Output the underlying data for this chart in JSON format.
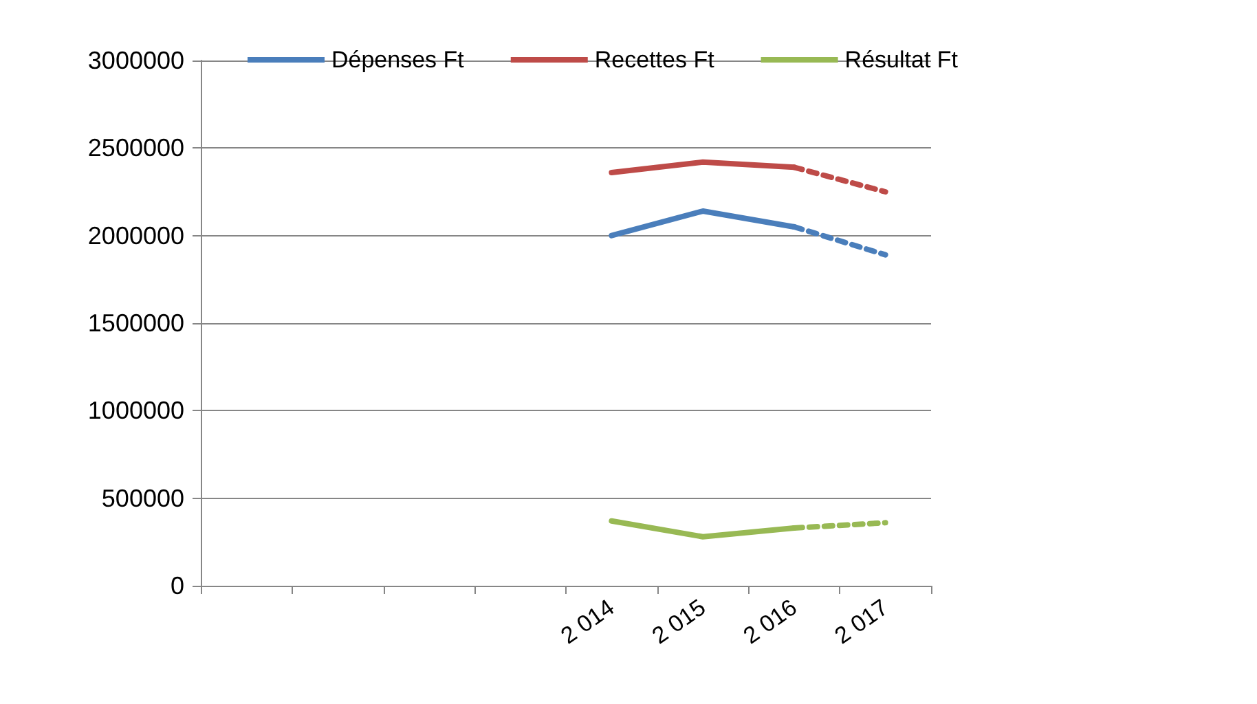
{
  "chart_data": {
    "type": "line",
    "categories": [
      null,
      null,
      null,
      null,
      "2 014",
      "2 015",
      "2 016",
      "2 017"
    ],
    "series": [
      {
        "name": "Dépenses Ft",
        "color": "#4a7ebb",
        "values": [
          null,
          null,
          null,
          null,
          2000000,
          2140000,
          2050000,
          null
        ]
      },
      {
        "name": "Recettes Ft",
        "color": "#be4b48",
        "values": [
          null,
          null,
          null,
          null,
          2360000,
          2420000,
          2390000,
          null
        ]
      },
      {
        "name": "Résultat Ft",
        "color": "#98b954",
        "values": [
          null,
          null,
          null,
          null,
          370000,
          280000,
          330000,
          null
        ]
      },
      {
        "color": "#4a7ebb",
        "line_style": "dashed",
        "values": [
          null,
          null,
          null,
          null,
          null,
          null,
          2050000,
          1890000
        ]
      },
      {
        "color": "#be4b48",
        "line_style": "dashed",
        "values": [
          null,
          null,
          null,
          null,
          null,
          null,
          2390000,
          2250000
        ]
      },
      {
        "color": "#98b954",
        "line_style": "dashed",
        "values": [
          null,
          null,
          null,
          null,
          null,
          null,
          330000,
          360000
        ]
      }
    ],
    "ylim": [
      0,
      3000000
    ],
    "yticks": [
      0,
      500000,
      1000000,
      1500000,
      2000000,
      2500000,
      3000000
    ],
    "grid": "y",
    "legend": "top",
    "marker": "none",
    "line_style": "solid"
  }
}
